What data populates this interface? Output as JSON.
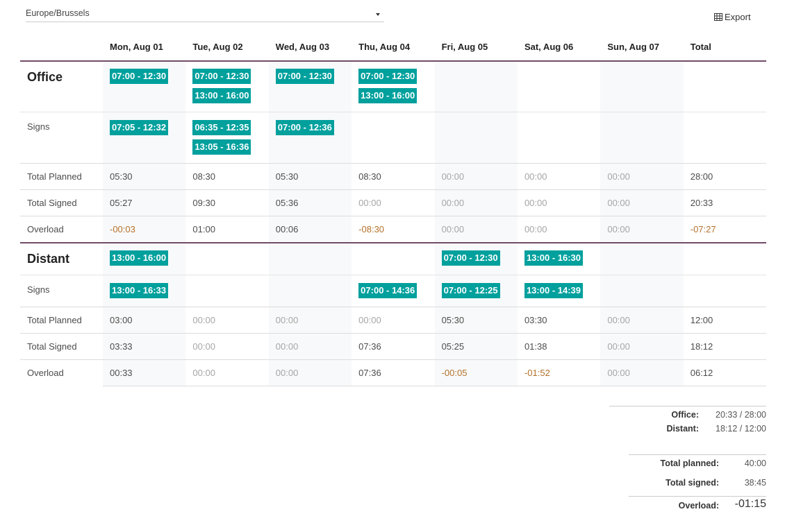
{
  "timezone": "Europe/Brussels",
  "export": "Export",
  "columns": [
    "Mon, Aug 01",
    "Tue, Aug 02",
    "Wed, Aug 03",
    "Thu, Aug 04",
    "Fri, Aug 05",
    "Sat, Aug 06",
    "Sun, Aug 07",
    "Total"
  ],
  "sections": [
    {
      "name": "Office",
      "planned": [
        [
          "07:00 - 12:30"
        ],
        [
          "07:00 - 12:30",
          "13:00 - 16:00"
        ],
        [
          "07:00 - 12:30"
        ],
        [
          "07:00 - 12:30",
          "13:00 - 16:00"
        ],
        [],
        [],
        []
      ],
      "signs_label": "Signs",
      "signs": [
        [
          "07:05 - 12:32"
        ],
        [
          "06:35 - 12:35",
          "13:05 - 16:36"
        ],
        [
          "07:00 - 12:36"
        ],
        [],
        [],
        [],
        []
      ],
      "rows": [
        {
          "label": "Total Planned",
          "cells": [
            "05:30",
            "08:30",
            "05:30",
            "08:30",
            "00:00",
            "00:00",
            "00:00",
            "28:00"
          ]
        },
        {
          "label": "Total Signed",
          "cells": [
            "05:27",
            "09:30",
            "05:36",
            "00:00",
            "00:00",
            "00:00",
            "00:00",
            "20:33"
          ]
        },
        {
          "label": "Overload",
          "cells": [
            "-00:03",
            "01:00",
            "00:06",
            "-08:30",
            "00:00",
            "00:00",
            "00:00",
            "-07:27"
          ]
        }
      ]
    },
    {
      "name": "Distant",
      "planned": [
        [
          "13:00 - 16:00"
        ],
        [],
        [],
        [],
        [
          "07:00 - 12:30"
        ],
        [
          "13:00 - 16:30"
        ],
        []
      ],
      "signs_label": "Signs",
      "signs": [
        [
          "13:00 - 16:33"
        ],
        [],
        [],
        [
          "07:00 - 14:36"
        ],
        [
          "07:00 - 12:25"
        ],
        [
          "13:00 - 14:39"
        ],
        []
      ],
      "rows": [
        {
          "label": "Total Planned",
          "cells": [
            "03:00",
            "00:00",
            "00:00",
            "00:00",
            "05:30",
            "03:30",
            "00:00",
            "12:00"
          ]
        },
        {
          "label": "Total Signed",
          "cells": [
            "03:33",
            "00:00",
            "00:00",
            "07:36",
            "05:25",
            "01:38",
            "00:00",
            "18:12"
          ]
        },
        {
          "label": "Overload",
          "cells": [
            "00:33",
            "00:00",
            "00:00",
            "07:36",
            "-00:05",
            "-01:52",
            "00:00",
            "06:12"
          ]
        }
      ]
    }
  ],
  "summary": {
    "by_type": [
      {
        "label": "Office:",
        "value": "20:33 / 28:00"
      },
      {
        "label": "Distant:",
        "value": "18:12 / 12:00"
      }
    ],
    "totals": [
      {
        "label": "Total planned:",
        "value": "40:00"
      },
      {
        "label": "Total signed:",
        "value": "38:45"
      }
    ],
    "overload": {
      "label": "Overload:",
      "value": "-01:15"
    }
  }
}
